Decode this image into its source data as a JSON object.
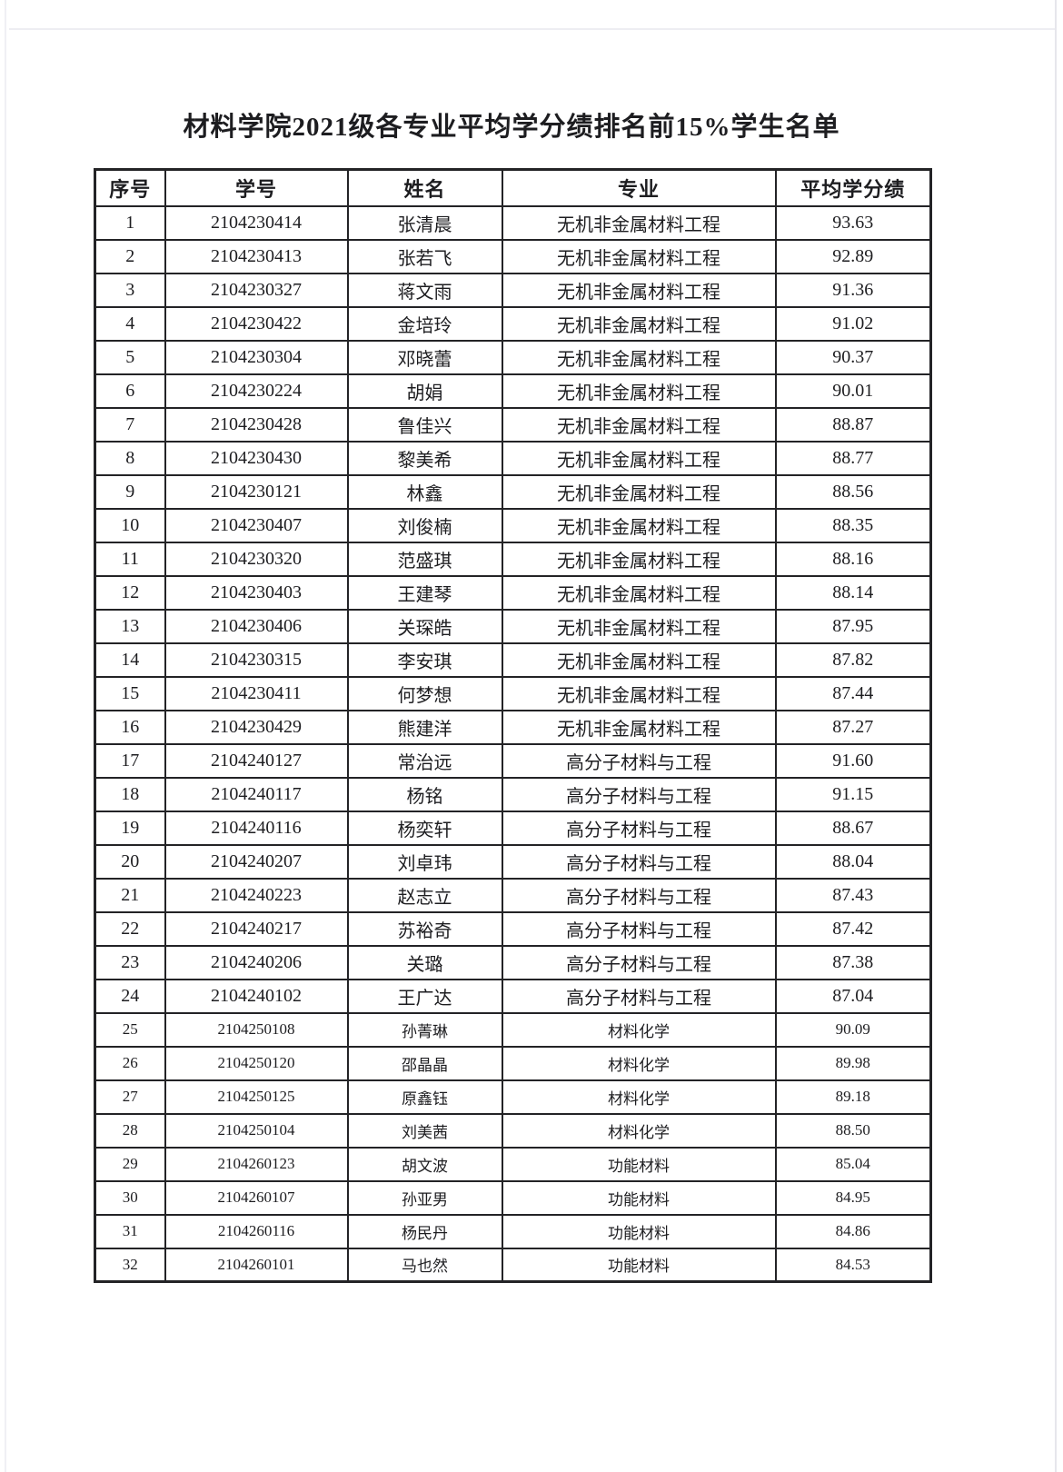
{
  "document": {
    "title": "材料学院2021级各专业平均学分绩排名前15%学生名单"
  },
  "theme": {
    "ink": "#1d1d20",
    "border": "#232326",
    "bg": "#ffffff"
  },
  "table": {
    "headers": [
      "序号",
      "学号",
      "姓名",
      "专业",
      "平均学分绩"
    ],
    "rows": [
      [
        "1",
        "2104230414",
        "张清晨",
        "无机非金属材料工程",
        "93.63"
      ],
      [
        "2",
        "2104230413",
        "张若飞",
        "无机非金属材料工程",
        "92.89"
      ],
      [
        "3",
        "2104230327",
        "蒋文雨",
        "无机非金属材料工程",
        "91.36"
      ],
      [
        "4",
        "2104230422",
        "金培玲",
        "无机非金属材料工程",
        "91.02"
      ],
      [
        "5",
        "2104230304",
        "邓晓蕾",
        "无机非金属材料工程",
        "90.37"
      ],
      [
        "6",
        "2104230224",
        "胡娟",
        "无机非金属材料工程",
        "90.01"
      ],
      [
        "7",
        "2104230428",
        "鲁佳兴",
        "无机非金属材料工程",
        "88.87"
      ],
      [
        "8",
        "2104230430",
        "黎美希",
        "无机非金属材料工程",
        "88.77"
      ],
      [
        "9",
        "2104230121",
        "林鑫",
        "无机非金属材料工程",
        "88.56"
      ],
      [
        "10",
        "2104230407",
        "刘俊楠",
        "无机非金属材料工程",
        "88.35"
      ],
      [
        "11",
        "2104230320",
        "范盛琪",
        "无机非金属材料工程",
        "88.16"
      ],
      [
        "12",
        "2104230403",
        "王建琴",
        "无机非金属材料工程",
        "88.14"
      ],
      [
        "13",
        "2104230406",
        "关琛皓",
        "无机非金属材料工程",
        "87.95"
      ],
      [
        "14",
        "2104230315",
        "李安琪",
        "无机非金属材料工程",
        "87.82"
      ],
      [
        "15",
        "2104230411",
        "何梦想",
        "无机非金属材料工程",
        "87.44"
      ],
      [
        "16",
        "2104230429",
        "熊建洋",
        "无机非金属材料工程",
        "87.27"
      ],
      [
        "17",
        "2104240127",
        "常治远",
        "高分子材料与工程",
        "91.60"
      ],
      [
        "18",
        "2104240117",
        "杨铭",
        "高分子材料与工程",
        "91.15"
      ],
      [
        "19",
        "2104240116",
        "杨奕轩",
        "高分子材料与工程",
        "88.67"
      ],
      [
        "20",
        "2104240207",
        "刘卓玮",
        "高分子材料与工程",
        "88.04"
      ],
      [
        "21",
        "2104240223",
        "赵志立",
        "高分子材料与工程",
        "87.43"
      ],
      [
        "22",
        "2104240217",
        "苏裕奇",
        "高分子材料与工程",
        "87.42"
      ],
      [
        "23",
        "2104240206",
        "关璐",
        "高分子材料与工程",
        "87.38"
      ],
      [
        "24",
        "2104240102",
        "王广达",
        "高分子材料与工程",
        "87.04"
      ],
      [
        "25",
        "2104250108",
        "孙菁琳",
        "材料化学",
        "90.09"
      ],
      [
        "26",
        "2104250120",
        "邵晶晶",
        "材料化学",
        "89.98"
      ],
      [
        "27",
        "2104250125",
        "原鑫钰",
        "材料化学",
        "89.18"
      ],
      [
        "28",
        "2104250104",
        "刘美茜",
        "材料化学",
        "88.50"
      ],
      [
        "29",
        "2104260123",
        "胡文波",
        "功能材料",
        "85.04"
      ],
      [
        "30",
        "2104260107",
        "孙亚男",
        "功能材料",
        "84.95"
      ],
      [
        "31",
        "2104260116",
        "杨民丹",
        "功能材料",
        "84.86"
      ],
      [
        "32",
        "2104260101",
        "马也然",
        "功能材料",
        "84.53"
      ]
    ]
  }
}
